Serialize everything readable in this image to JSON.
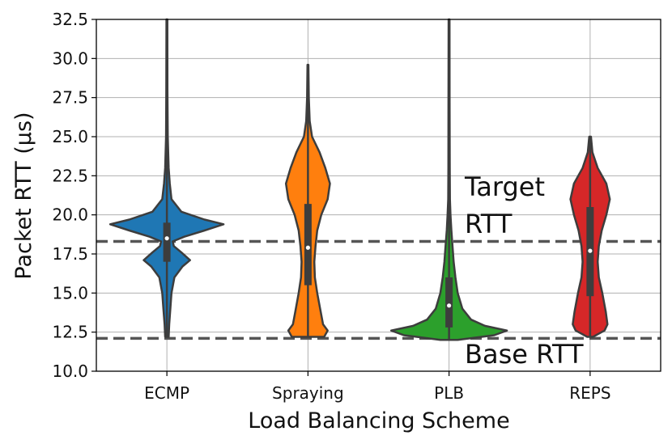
{
  "chart_data": {
    "type": "violin",
    "xlabel": "Load Balancing Scheme",
    "ylabel": "Packet RTT (μs)",
    "ylim": [
      10.0,
      32.5
    ],
    "yticks": [
      "10.0",
      "12.5",
      "15.0",
      "17.5",
      "20.0",
      "22.5",
      "25.0",
      "27.5",
      "30.0",
      "32.5"
    ],
    "grid": true,
    "categories": [
      "ECMP",
      "Spraying",
      "PLB",
      "REPS"
    ],
    "series": [
      {
        "category": "ECMP",
        "color": "#1f77b4",
        "min": 12.2,
        "max": 32.5,
        "q1": 17.0,
        "median": 18.5,
        "q3": 19.5,
        "density": [
          [
            12.2,
            0.03
          ],
          [
            13.0,
            0.04
          ],
          [
            14.0,
            0.06
          ],
          [
            15.0,
            0.08
          ],
          [
            16.0,
            0.13
          ],
          [
            16.7,
            0.27
          ],
          [
            17.1,
            0.4
          ],
          [
            17.6,
            0.25
          ],
          [
            18.0,
            0.12
          ],
          [
            18.3,
            0.1
          ],
          [
            18.6,
            0.3
          ],
          [
            19.0,
            0.65
          ],
          [
            19.4,
            0.98
          ],
          [
            19.7,
            0.65
          ],
          [
            20.2,
            0.25
          ],
          [
            21.0,
            0.08
          ],
          [
            22.0,
            0.05
          ],
          [
            23.0,
            0.03
          ],
          [
            25.0,
            0.015
          ],
          [
            28.0,
            0.01
          ],
          [
            32.5,
            0.008
          ]
        ]
      },
      {
        "category": "Spraying",
        "color": "#ff7f0e",
        "min": 12.2,
        "max": 29.6,
        "q1": 15.5,
        "median": 17.9,
        "q3": 20.7,
        "density": [
          [
            12.2,
            0.28
          ],
          [
            12.6,
            0.34
          ],
          [
            13.0,
            0.26
          ],
          [
            13.8,
            0.22
          ],
          [
            15.0,
            0.16
          ],
          [
            16.0,
            0.12
          ],
          [
            17.0,
            0.11
          ],
          [
            18.0,
            0.13
          ],
          [
            19.0,
            0.16
          ],
          [
            20.0,
            0.23
          ],
          [
            21.0,
            0.34
          ],
          [
            22.0,
            0.38
          ],
          [
            23.0,
            0.3
          ],
          [
            24.0,
            0.2
          ],
          [
            25.0,
            0.07
          ],
          [
            26.0,
            0.03
          ],
          [
            27.5,
            0.015
          ],
          [
            29.6,
            0.008
          ]
        ]
      },
      {
        "category": "PLB",
        "color": "#2ca02c",
        "min": 12.0,
        "max": 32.5,
        "q1": 12.8,
        "median": 14.2,
        "q3": 16.0,
        "density": [
          [
            12.0,
            0.15
          ],
          [
            12.3,
            0.78
          ],
          [
            12.6,
            1.0
          ],
          [
            12.9,
            0.62
          ],
          [
            13.3,
            0.38
          ],
          [
            14.0,
            0.23
          ],
          [
            15.0,
            0.15
          ],
          [
            16.0,
            0.11
          ],
          [
            17.0,
            0.08
          ],
          [
            18.0,
            0.06
          ],
          [
            19.0,
            0.04
          ],
          [
            20.0,
            0.025
          ],
          [
            21.0,
            0.015
          ],
          [
            23.0,
            0.012
          ],
          [
            27.0,
            0.01
          ],
          [
            32.5,
            0.008
          ]
        ]
      },
      {
        "category": "REPS",
        "color": "#d62728",
        "min": 12.2,
        "max": 25.0,
        "q1": 14.8,
        "median": 17.7,
        "q3": 20.5,
        "density": [
          [
            12.2,
            0.05
          ],
          [
            12.6,
            0.25
          ],
          [
            13.0,
            0.3
          ],
          [
            13.8,
            0.27
          ],
          [
            15.0,
            0.21
          ],
          [
            16.0,
            0.15
          ],
          [
            17.0,
            0.13
          ],
          [
            18.0,
            0.15
          ],
          [
            19.0,
            0.2
          ],
          [
            20.0,
            0.28
          ],
          [
            21.0,
            0.34
          ],
          [
            22.0,
            0.28
          ],
          [
            23.0,
            0.13
          ],
          [
            24.0,
            0.04
          ],
          [
            25.0,
            0.015
          ]
        ]
      }
    ],
    "reference_lines": [
      {
        "name": "Target RTT",
        "y": 18.3,
        "style": "dashed"
      },
      {
        "name": "Base RTT",
        "y": 12.1,
        "style": "dashed"
      }
    ],
    "annotations": [
      {
        "lines": [
          "Target",
          "RTT"
        ]
      },
      {
        "lines": [
          "Base RTT"
        ]
      }
    ]
  }
}
